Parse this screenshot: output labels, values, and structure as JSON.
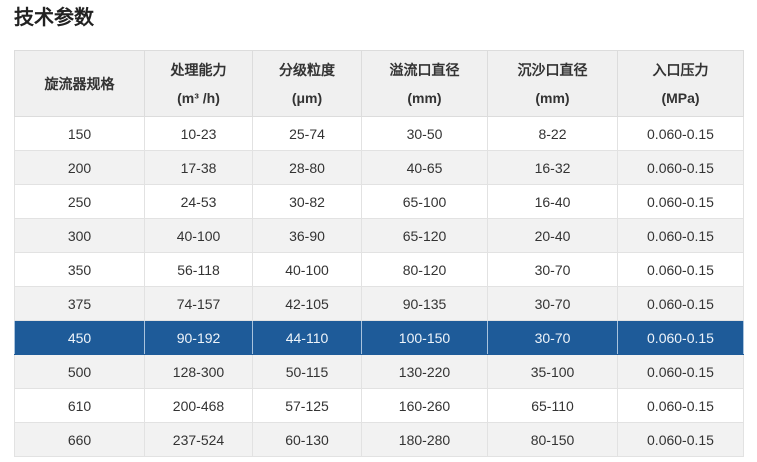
{
  "page": {
    "title": "技术参数"
  },
  "table": {
    "headers": [
      {
        "label": "旋流器规格",
        "unit": ""
      },
      {
        "label": "处理能力",
        "unit": "(m³ /h)"
      },
      {
        "label": "分级粒度",
        "unit": "(μm)"
      },
      {
        "label": "溢流口直径",
        "unit": "(mm)"
      },
      {
        "label": "沉沙口直径",
        "unit": "(mm)"
      },
      {
        "label": "入口压力",
        "unit": "(MPa)"
      }
    ],
    "rows": [
      [
        "150",
        "10-23",
        "25-74",
        "30-50",
        "8-22",
        "0.060-0.15"
      ],
      [
        "200",
        "17-38",
        "28-80",
        "40-65",
        "16-32",
        "0.060-0.15"
      ],
      [
        "250",
        "24-53",
        "30-82",
        "65-100",
        "16-40",
        "0.060-0.15"
      ],
      [
        "300",
        "40-100",
        "36-90",
        "65-120",
        "20-40",
        "0.060-0.15"
      ],
      [
        "350",
        "56-118",
        "40-100",
        "80-120",
        "30-70",
        "0.060-0.15"
      ],
      [
        "375",
        "74-157",
        "42-105",
        "90-135",
        "30-70",
        "0.060-0.15"
      ],
      [
        "450",
        "90-192",
        "44-110",
        "100-150",
        "30-70",
        "0.060-0.15"
      ],
      [
        "500",
        "128-300",
        "50-115",
        "130-220",
        "35-100",
        "0.060-0.15"
      ],
      [
        "610",
        "200-468",
        "57-125",
        "160-260",
        "65-110",
        "0.060-0.15"
      ],
      [
        "660",
        "237-524",
        "60-130",
        "180-280",
        "80-150",
        "0.060-0.15"
      ]
    ],
    "highlighted_row_index": 6
  },
  "colors": {
    "highlight_bg": "#1e5b99",
    "highlight_text": "#eef4fa",
    "header_bg": "#f0f0f0",
    "alt_row_bg": "#f2f2f2",
    "border": "#dcdcdc",
    "text": "#333333",
    "title": "#222222"
  }
}
